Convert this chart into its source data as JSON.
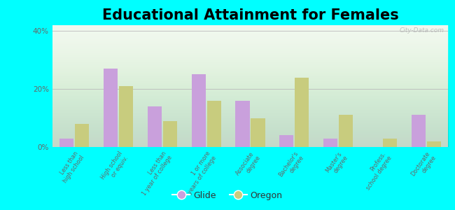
{
  "title": "Educational Attainment for Females",
  "categories": [
    "Less than\nhigh school",
    "High school\nor equiv.",
    "Less than\n1 year of college",
    "1 or more\nyears of college",
    "Associate\ndegree",
    "Bachelor's\ndegree",
    "Master's\ndegree",
    "Profess.\nschool degree",
    "Doctorate\ndegree"
  ],
  "glide_values": [
    3,
    27,
    14,
    25,
    16,
    4,
    3,
    0,
    11
  ],
  "oregon_values": [
    8,
    21,
    9,
    16,
    10,
    24,
    11,
    3,
    2
  ],
  "glide_color": "#c9a0dc",
  "oregon_color": "#c8cc7e",
  "outer_background": "#00ffff",
  "ylim": [
    0,
    42
  ],
  "yticks": [
    0,
    20,
    40
  ],
  "ytick_labels": [
    "0%",
    "20%",
    "40%"
  ],
  "title_fontsize": 15,
  "legend_labels": [
    "Glide",
    "Oregon"
  ],
  "watermark": "City-Data.com"
}
